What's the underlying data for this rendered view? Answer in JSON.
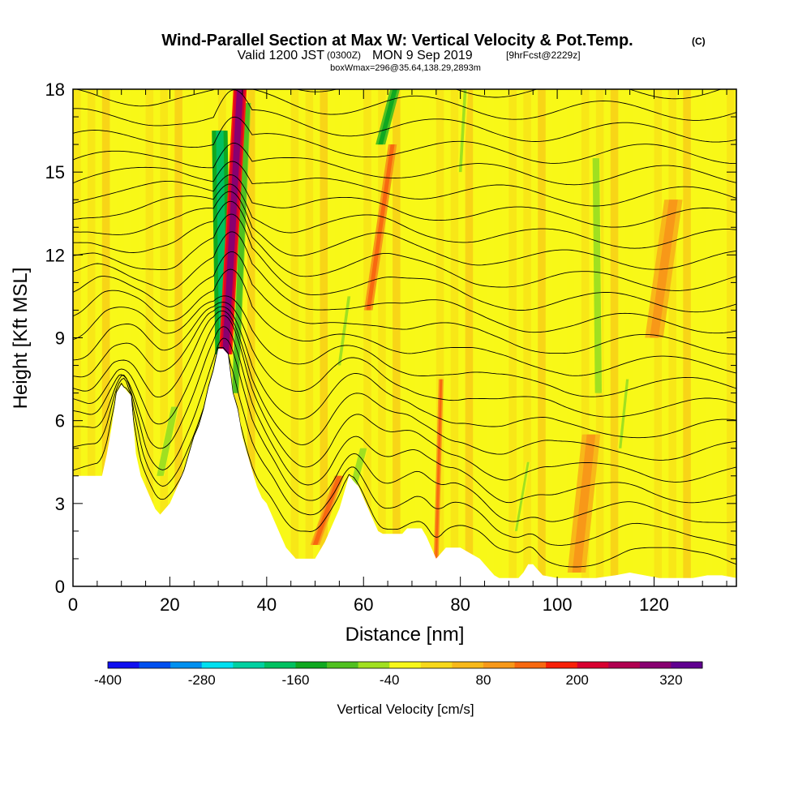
{
  "title": {
    "main": "Wind-Parallel Section at Max W: Vertical Velocity & Pot.Temp.",
    "copyright": "(C)",
    "valid_prefix": "Valid 1200 JST",
    "valid_utc": "(0300Z)",
    "valid_date": "MON 9 Sep 2019",
    "forecast": "[9hrFcst@2229z]",
    "box": "boxWmax=296@35.64,138.29,2893m"
  },
  "chart_data": {
    "type": "heatmap",
    "xlabel": "Distance [nm]",
    "ylabel": "Height [Kft MSL]",
    "xlim": [
      0,
      137
    ],
    "ylim": [
      0,
      18
    ],
    "x_ticks": [
      0,
      20,
      40,
      60,
      80,
      100,
      120
    ],
    "y_ticks": [
      0,
      3,
      6,
      9,
      12,
      15,
      18
    ],
    "x_tick_labels": [
      "0",
      "20",
      "40",
      "60",
      "80",
      "100",
      "120"
    ],
    "y_tick_labels": [
      "0",
      "3",
      "6",
      "9",
      "12",
      "15",
      "18"
    ],
    "terrain": [
      [
        0,
        4.0
      ],
      [
        2,
        4.0
      ],
      [
        4,
        4.0
      ],
      [
        6,
        4.0
      ],
      [
        7,
        4.8
      ],
      [
        8,
        5.8
      ],
      [
        9,
        7.0
      ],
      [
        10,
        7.3
      ],
      [
        12,
        6.9
      ],
      [
        13,
        4.8
      ],
      [
        14,
        4.0
      ],
      [
        15,
        3.6
      ],
      [
        16,
        3.2
      ],
      [
        17,
        2.8
      ],
      [
        18,
        2.6
      ],
      [
        20,
        3.0
      ],
      [
        21,
        3.4
      ],
      [
        22,
        3.8
      ],
      [
        23,
        4.2
      ],
      [
        24,
        4.8
      ],
      [
        25,
        5.4
      ],
      [
        26,
        5.8
      ],
      [
        27,
        6.4
      ],
      [
        28,
        7.2
      ],
      [
        29,
        7.8
      ],
      [
        30,
        8.6
      ],
      [
        31,
        8.6
      ],
      [
        32,
        8.4
      ],
      [
        33,
        7.0
      ],
      [
        34,
        6.4
      ],
      [
        35,
        5.4
      ],
      [
        36,
        4.8
      ],
      [
        37,
        4.2
      ],
      [
        38,
        3.6
      ],
      [
        39,
        3.2
      ],
      [
        40,
        3.0
      ],
      [
        41,
        2.6
      ],
      [
        42,
        2.2
      ],
      [
        43,
        1.8
      ],
      [
        44,
        1.4
      ],
      [
        45,
        1.2
      ],
      [
        46,
        1.0
      ],
      [
        50,
        1.0
      ],
      [
        51,
        1.3
      ],
      [
        52,
        1.6
      ],
      [
        53,
        2.0
      ],
      [
        54,
        2.4
      ],
      [
        55,
        2.8
      ],
      [
        56,
        3.4
      ],
      [
        57,
        4.0
      ],
      [
        58,
        3.8
      ],
      [
        59,
        3.6
      ],
      [
        60,
        3.2
      ],
      [
        61,
        2.8
      ],
      [
        62,
        2.4
      ],
      [
        63,
        2.0
      ],
      [
        64,
        1.9
      ],
      [
        68,
        1.9
      ],
      [
        69,
        2.1
      ],
      [
        72,
        2.1
      ],
      [
        73,
        1.8
      ],
      [
        74,
        1.4
      ],
      [
        75,
        1.0
      ],
      [
        76,
        1.2
      ],
      [
        77,
        1.4
      ],
      [
        80,
        1.4
      ],
      [
        82,
        1.2
      ],
      [
        84,
        1.0
      ],
      [
        85,
        0.8
      ],
      [
        86,
        0.6
      ],
      [
        87,
        0.4
      ],
      [
        88,
        0.3
      ],
      [
        92,
        0.3
      ],
      [
        93,
        0.5
      ],
      [
        94,
        0.8
      ],
      [
        95,
        0.8
      ],
      [
        96,
        0.6
      ],
      [
        97,
        0.4
      ],
      [
        100,
        0.3
      ],
      [
        108,
        0.3
      ],
      [
        112,
        0.4
      ],
      [
        115,
        0.5
      ],
      [
        118,
        0.4
      ],
      [
        121,
        0.3
      ],
      [
        128,
        0.3
      ],
      [
        131,
        0.4
      ],
      [
        134,
        0.4
      ],
      [
        137,
        0.3
      ]
    ],
    "velocity_features": [
      {
        "kind": "updraft",
        "x0": 31.5,
        "y0": 8.4,
        "x1": 34.5,
        "y1": 18,
        "w": 2.2,
        "value": 296
      },
      {
        "kind": "downdraft",
        "x0": 31.0,
        "y0": 8.4,
        "x1": 30.3,
        "y1": 16.5,
        "w": 2.6,
        "value": -200
      },
      {
        "kind": "downdraft",
        "x0": 33.5,
        "y0": 7.0,
        "x1": 36.0,
        "y1": 17.5,
        "w": 1.2,
        "value": -120
      },
      {
        "kind": "updraft",
        "x0": 61.0,
        "y0": 10.0,
        "x1": 66.0,
        "y1": 16.0,
        "w": 1.4,
        "value": 140
      },
      {
        "kind": "downdraft",
        "x0": 63.5,
        "y0": 16.0,
        "x1": 66.5,
        "y1": 18.0,
        "w": 1.6,
        "value": -140
      },
      {
        "kind": "updraft",
        "x0": 75.0,
        "y0": 1.0,
        "x1": 76.0,
        "y1": 7.5,
        "w": 0.8,
        "value": 150
      },
      {
        "kind": "updraft",
        "x0": 50.0,
        "y0": 1.5,
        "x1": 55.0,
        "y1": 4.0,
        "w": 1.6,
        "value": 120
      },
      {
        "kind": "downdraft",
        "x0": 18.0,
        "y0": 4.0,
        "x1": 21.0,
        "y1": 6.5,
        "w": 1.4,
        "value": -60
      },
      {
        "kind": "downdraft",
        "x0": 108.5,
        "y0": 7.0,
        "x1": 108.0,
        "y1": 15.5,
        "w": 1.4,
        "value": -60
      },
      {
        "kind": "downdraft",
        "x0": 91.5,
        "y0": 2.0,
        "x1": 94.0,
        "y1": 4.5,
        "w": 0.8,
        "value": -50
      },
      {
        "kind": "downdraft",
        "x0": 113.0,
        "y0": 5.0,
        "x1": 114.5,
        "y1": 7.5,
        "w": 0.9,
        "value": -50
      },
      {
        "kind": "downdraft",
        "x0": 57.0,
        "y0": 3.0,
        "x1": 60.0,
        "y1": 5.0,
        "w": 1.4,
        "value": -60
      },
      {
        "kind": "downdraft",
        "x0": 55.0,
        "y0": 8.0,
        "x1": 57.0,
        "y1": 10.5,
        "w": 1.0,
        "value": -50
      },
      {
        "kind": "downdraft",
        "x0": 80.0,
        "y0": 15.0,
        "x1": 81.0,
        "y1": 18.0,
        "w": 1.0,
        "value": -50
      },
      {
        "kind": "updraft",
        "x0": 104.0,
        "y0": 0.5,
        "x1": 107.0,
        "y1": 5.5,
        "w": 3.0,
        "value": 90
      },
      {
        "kind": "updraft",
        "x0": 120.0,
        "y0": 9.0,
        "x1": 124.0,
        "y1": 14.0,
        "w": 3.0,
        "value": 80
      }
    ],
    "colorbar": {
      "title": "Vertical Velocity [cm/s]",
      "levels": [
        -400,
        -360,
        -320,
        -280,
        -240,
        -200,
        -160,
        -120,
        -80,
        -40,
        0,
        40,
        80,
        120,
        160,
        200,
        240,
        280,
        320,
        360
      ],
      "colors": [
        "#1010f0",
        "#0050f0",
        "#0090f0",
        "#00e0f0",
        "#00d0a0",
        "#00c060",
        "#10a820",
        "#50c020",
        "#a0e020",
        "#f8f818",
        "#f8d818",
        "#f8b818",
        "#f89818",
        "#f86810",
        "#f82008",
        "#d80030",
        "#b00050",
        "#880070",
        "#600090"
      ],
      "tick_values": [
        -400,
        -280,
        -160,
        -40,
        80,
        200,
        320
      ],
      "tick_labels": [
        "-400",
        "-280",
        "-160",
        "-40",
        "80",
        "200",
        "320"
      ]
    }
  }
}
